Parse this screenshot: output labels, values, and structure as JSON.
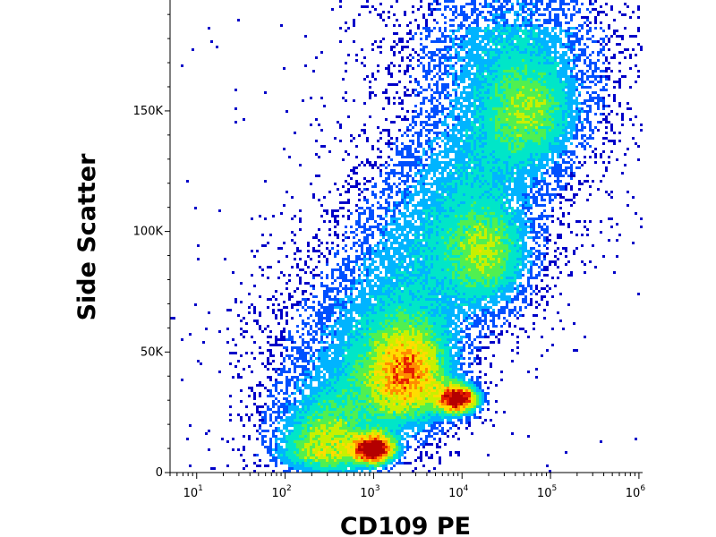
{
  "chart_data": {
    "type": "heatmap",
    "title": "",
    "xlabel": "CD109 PE",
    "ylabel": "Side Scatter",
    "x_scale": "log",
    "xlim": [
      5,
      1100000
    ],
    "ylim": [
      0,
      196000
    ],
    "x_ticks": [
      {
        "value": 10,
        "base": "10",
        "exp": "1"
      },
      {
        "value": 100,
        "base": "10",
        "exp": "2"
      },
      {
        "value": 1000,
        "base": "10",
        "exp": "3"
      },
      {
        "value": 10000,
        "base": "10",
        "exp": "4"
      },
      {
        "value": 100000,
        "base": "10",
        "exp": "5"
      },
      {
        "value": 1000000,
        "base": "10",
        "exp": "6"
      }
    ],
    "y_ticks": [
      {
        "value": 0,
        "label": "0"
      },
      {
        "value": 50000,
        "label": "50K"
      },
      {
        "value": 100000,
        "label": "100K"
      },
      {
        "value": 150000,
        "label": "150K"
      }
    ],
    "grid": false,
    "legend": "none",
    "colormap": [
      "#0000c8",
      "#0050ff",
      "#00b4ff",
      "#00e6c8",
      "#50f050",
      "#c8f000",
      "#ffdc00",
      "#ff8c00",
      "#e61e00",
      "#b40000"
    ],
    "populations": [
      {
        "x": 1000,
        "y": 10000,
        "density": 1.0
      },
      {
        "x": 9000,
        "y": 31000,
        "density": 0.95
      },
      {
        "x": 2500,
        "y": 40000,
        "density": 0.6
      },
      {
        "x": 20000,
        "y": 90000,
        "density": 0.35
      },
      {
        "x": 60000,
        "y": 150000,
        "density": 0.25
      },
      {
        "x": 300,
        "y": 8000,
        "density": 0.3
      }
    ]
  }
}
